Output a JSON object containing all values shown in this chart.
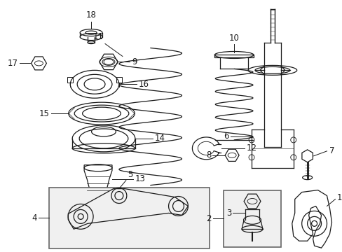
{
  "bg_color": "#ffffff",
  "line_color": "#1a1a1a",
  "fig_width": 4.89,
  "fig_height": 3.6,
  "dpi": 100,
  "lw": 0.9,
  "font_size": 8.5
}
